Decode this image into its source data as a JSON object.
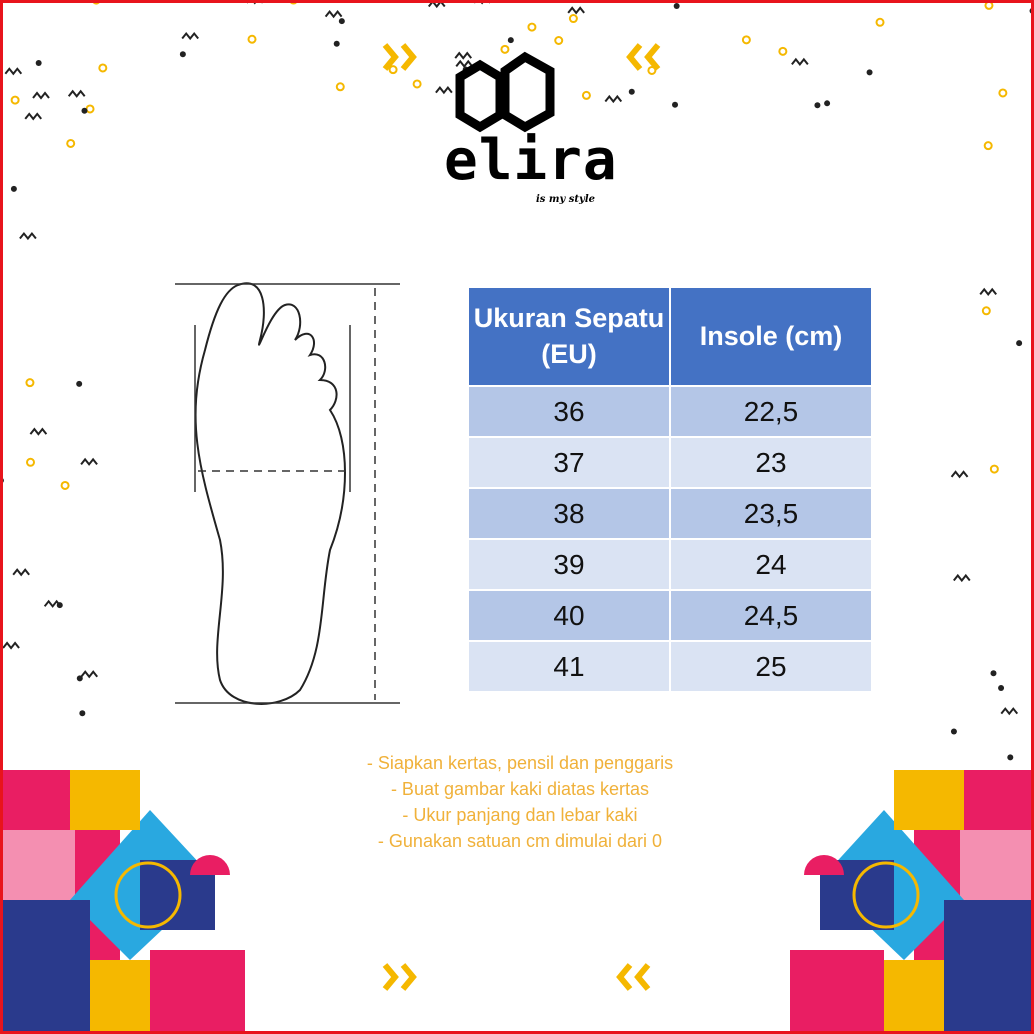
{
  "brand": {
    "name": "elira",
    "tagline": "is my style"
  },
  "table": {
    "headers": [
      "Ukuran Sepatu (EU)",
      "Insole (cm)"
    ],
    "rows": [
      [
        "36",
        "22,5"
      ],
      [
        "37",
        "23"
      ],
      [
        "38",
        "23,5"
      ],
      [
        "39",
        "24"
      ],
      [
        "40",
        "24,5"
      ],
      [
        "41",
        "25"
      ]
    ]
  },
  "instructions": [
    "- Siapkan kertas, pensil dan penggaris",
    "- Buat gambar kaki diatas kertas",
    "- Ukur panjang dan lebar kaki",
    "- Gunakan satuan cm dimulai dari 0"
  ],
  "colors": {
    "border": "#e8141c",
    "header": "#4472c4",
    "row_odd": "#b4c6e7",
    "row_even": "#dae3f3",
    "instructions": "#f0b13a",
    "accent_yellow": "#f5b800",
    "accent_pink": "#e91e63",
    "accent_blue": "#29a8e0",
    "accent_navy": "#2a3a8c"
  }
}
